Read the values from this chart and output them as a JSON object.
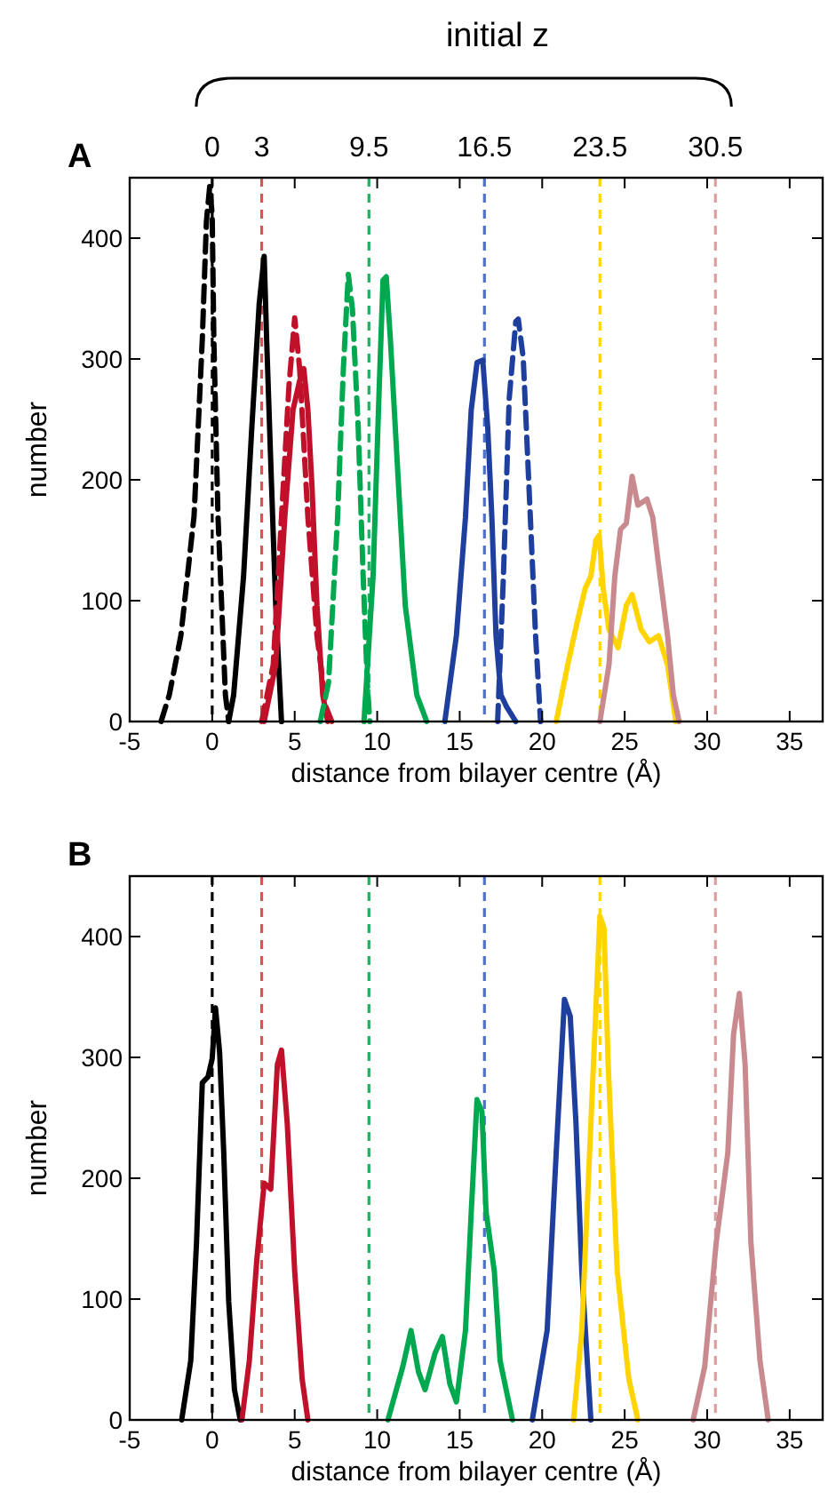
{
  "chart_data": [
    {
      "type": "line",
      "title": "A",
      "xlabel": "distance from bilayer centre (Å)",
      "ylabel": "number",
      "x2label": "initial z",
      "xlim": [
        -5,
        37
      ],
      "xticks": [
        -5,
        0,
        5,
        10,
        15,
        20,
        25,
        30,
        35
      ],
      "x2lim": [
        -5,
        37
      ],
      "x2ticks": [
        0,
        3,
        9.5,
        16.5,
        23.5,
        30.5
      ],
      "ylim": [
        0,
        450
      ],
      "yticks": [
        0,
        100,
        200,
        300,
        400
      ],
      "ref_lines": [
        {
          "axis": "x",
          "value": 0,
          "color": "#000000",
          "line_style": "dashed"
        },
        {
          "axis": "x",
          "value": 3,
          "color": "#e05050",
          "line_style": "dashed"
        },
        {
          "axis": "x",
          "value": 9.5,
          "color": "#20b060",
          "line_style": "dashed"
        },
        {
          "axis": "x",
          "value": 16.5,
          "color": "#5070c8",
          "line_style": "dashed"
        },
        {
          "axis": "x",
          "value": 23.5,
          "color": "#ffd400",
          "line_style": "dashed"
        },
        {
          "axis": "x",
          "value": 30.5,
          "color": "#d8a0a0",
          "line_style": "dashed"
        }
      ],
      "series": [
        {
          "color": "#000000",
          "line_style": "dashed",
          "x": [
            -3.1,
            -2.6,
            -1.9,
            -1.1,
            -0.6,
            -0.35,
            -0.15,
            0,
            0.1,
            0.35,
            0.65,
            0.8,
            1.0
          ],
          "values": [
            0,
            22,
            71,
            170,
            316,
            414,
            443,
            419,
            316,
            170,
            71,
            22,
            0
          ]
        },
        {
          "color": "#000000",
          "line_style": "solid",
          "x": [
            1.0,
            1.3,
            1.9,
            2.4,
            2.85,
            3.15,
            3.3,
            3.6,
            3.85,
            4.2
          ],
          "values": [
            0,
            22,
            120,
            243,
            346,
            385,
            316,
            194,
            96,
            0
          ]
        },
        {
          "color": "#c0102a",
          "line_style": "dashed",
          "x": [
            3.0,
            3.7,
            4.2,
            4.65,
            5.0,
            5.3,
            5.8,
            6.35,
            6.9,
            7.25
          ],
          "values": [
            0,
            47,
            169,
            277,
            334,
            292,
            169,
            71,
            12,
            0
          ]
        },
        {
          "color": "#c0102a",
          "line_style": "solid",
          "x": [
            3.15,
            3.85,
            4.4,
            4.9,
            5.3,
            5.55,
            5.8,
            6.05,
            6.35,
            6.7,
            7.0
          ],
          "values": [
            0,
            47,
            169,
            258,
            282,
            292,
            258,
            194,
            96,
            22,
            0
          ]
        },
        {
          "color": "#00a84f",
          "line_style": "dashed",
          "x": [
            6.55,
            7.05,
            7.6,
            7.95,
            8.25,
            8.5,
            8.85,
            9.15,
            9.4,
            9.55
          ],
          "values": [
            0,
            32,
            169,
            292,
            370,
            341,
            243,
            120,
            32,
            0
          ]
        },
        {
          "color": "#00a84f",
          "line_style": "solid",
          "x": [
            9.2,
            9.75,
            10.1,
            10.35,
            10.55,
            10.8,
            11.2,
            11.7,
            12.4,
            13.0
          ],
          "values": [
            0,
            120,
            267,
            365,
            368,
            316,
            218,
            96,
            22,
            0
          ]
        },
        {
          "color": "#1f3f9f",
          "line_style": "solid",
          "x": [
            14.1,
            14.8,
            15.35,
            15.7,
            16.05,
            16.4,
            16.7,
            16.95,
            17.2,
            17.5,
            17.85,
            18.4
          ],
          "values": [
            0,
            71,
            169,
            258,
            297,
            299,
            243,
            169,
            71,
            22,
            12,
            0
          ]
        },
        {
          "color": "#1f3f9f",
          "line_style": "dashed",
          "x": [
            17.3,
            17.65,
            18.0,
            18.4,
            18.55,
            18.85,
            19.2,
            19.6,
            19.9
          ],
          "values": [
            0,
            120,
            267,
            331,
            333,
            301,
            194,
            71,
            0
          ]
        },
        {
          "color": "#ffd400",
          "line_style": "solid",
          "x": [
            20.85,
            21.55,
            22.1,
            22.6,
            22.95,
            23.25,
            23.45,
            23.7,
            24.05,
            24.6,
            25.1,
            25.45,
            26.0,
            26.5,
            27.05,
            27.6,
            28.1
          ],
          "values": [
            0,
            47,
            81,
            110,
            120,
            150,
            154,
            110,
            76,
            61,
            96,
            105,
            76,
            66,
            71,
            47,
            0
          ]
        },
        {
          "color": "#c98a8f",
          "line_style": "solid",
          "x": [
            23.5,
            24.05,
            24.4,
            24.75,
            25.1,
            25.45,
            25.8,
            26.35,
            26.7,
            27.05,
            27.6,
            27.95,
            28.3
          ],
          "values": [
            0,
            47,
            120,
            159,
            164,
            203,
            179,
            184,
            169,
            130,
            71,
            22,
            0
          ]
        }
      ]
    },
    {
      "type": "line",
      "title": "B",
      "xlabel": "distance from bilayer centre (Å)",
      "ylabel": "number",
      "xlim": [
        -5,
        37
      ],
      "xticks": [
        -5,
        0,
        5,
        10,
        15,
        20,
        25,
        30,
        35
      ],
      "ylim": [
        0,
        450
      ],
      "yticks": [
        0,
        100,
        200,
        300,
        400
      ],
      "ref_lines": [
        {
          "axis": "x",
          "value": 0,
          "color": "#000000",
          "line_style": "dashed"
        },
        {
          "axis": "x",
          "value": 3,
          "color": "#e05050",
          "line_style": "dashed"
        },
        {
          "axis": "x",
          "value": 9.5,
          "color": "#20b060",
          "line_style": "dashed"
        },
        {
          "axis": "x",
          "value": 16.5,
          "color": "#5070c8",
          "line_style": "dashed"
        },
        {
          "axis": "x",
          "value": 23.5,
          "color": "#ffd400",
          "line_style": "dashed"
        },
        {
          "axis": "x",
          "value": 30.5,
          "color": "#d8a0a0",
          "line_style": "dashed"
        }
      ],
      "series": [
        {
          "color": "#000000",
          "line_style": "solid",
          "x": [
            -1.85,
            -1.3,
            -0.95,
            -0.6,
            -0.25,
            0,
            0.2,
            0.45,
            0.7,
            1.0,
            1.35,
            1.7
          ],
          "values": [
            0,
            49,
            147,
            279,
            284,
            299,
            341,
            304,
            221,
            98,
            25,
            0
          ]
        },
        {
          "color": "#c0102a",
          "line_style": "solid",
          "x": [
            1.8,
            2.25,
            2.7,
            3.15,
            3.55,
            3.95,
            4.2,
            4.55,
            5.0,
            5.45,
            5.8
          ],
          "values": [
            0,
            49,
            132,
            196,
            191,
            294,
            306,
            245,
            123,
            34,
            0
          ]
        },
        {
          "color": "#00a84f",
          "line_style": "solid",
          "x": [
            10.65,
            11.55,
            12.05,
            12.5,
            12.9,
            13.5,
            13.95,
            14.4,
            14.8,
            15.35,
            15.7,
            16.05,
            16.35,
            16.6,
            17.1,
            17.45,
            18.2
          ],
          "values": [
            0,
            44,
            74,
            40,
            25,
            55,
            69,
            30,
            15,
            74,
            172,
            265,
            255,
            172,
            123,
            49,
            0
          ]
        },
        {
          "color": "#1f3f9f",
          "line_style": "solid",
          "x": [
            19.4,
            20.3,
            20.85,
            21.35,
            21.7,
            22.05,
            22.4,
            22.95
          ],
          "values": [
            0,
            74,
            221,
            348,
            334,
            245,
            123,
            0
          ]
        },
        {
          "color": "#ffd400",
          "line_style": "solid",
          "x": [
            21.9,
            22.4,
            22.95,
            23.5,
            23.75,
            24.0,
            24.55,
            25.25,
            25.8
          ],
          "values": [
            0,
            74,
            245,
            417,
            407,
            294,
            123,
            34,
            0
          ]
        },
        {
          "color": "#c98a8f",
          "line_style": "solid",
          "x": [
            29.15,
            29.85,
            30.55,
            31.25,
            31.6,
            31.95,
            32.3,
            32.65,
            33.2,
            33.7
          ],
          "values": [
            0,
            44,
            147,
            221,
            319,
            353,
            294,
            147,
            49,
            0
          ]
        }
      ]
    }
  ]
}
